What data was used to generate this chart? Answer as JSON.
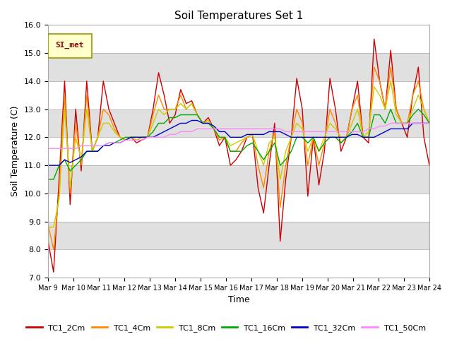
{
  "title": "Soil Temperatures Set 1",
  "xlabel": "Time",
  "ylabel": "Soil Temperature (C)",
  "ylim": [
    7.0,
    16.0
  ],
  "yticks": [
    7.0,
    8.0,
    9.0,
    10.0,
    11.0,
    12.0,
    13.0,
    14.0,
    15.0,
    16.0
  ],
  "x_labels": [
    "Mar 9",
    "Mar 10",
    "Mar 11",
    "Mar 12",
    "Mar 13",
    "Mar 14",
    "Mar 15",
    "Mar 16",
    "Mar 17",
    "Mar 18",
    "Mar 19",
    "Mar 20",
    "Mar 21",
    "Mar 22",
    "Mar 23",
    "Mar 24"
  ],
  "series_colors": {
    "TC1_2Cm": "#cc0000",
    "TC1_4Cm": "#ff8800",
    "TC1_8Cm": "#cccc00",
    "TC1_16Cm": "#00aa00",
    "TC1_32Cm": "#0000cc",
    "TC1_50Cm": "#ff88ff"
  },
  "legend_label": "SI_met",
  "background_color": "#ffffff",
  "plot_bg_alt1": "#e8e8e8",
  "plot_bg_alt2": "#ffffff",
  "TC1_2Cm": [
    8.3,
    7.2,
    10.5,
    14.0,
    9.6,
    13.0,
    10.8,
    14.0,
    11.5,
    12.0,
    14.0,
    13.0,
    12.5,
    12.0,
    11.9,
    12.0,
    11.8,
    11.9,
    12.0,
    13.0,
    14.3,
    13.5,
    12.5,
    12.8,
    13.7,
    13.2,
    13.3,
    12.8,
    12.5,
    12.7,
    12.3,
    11.7,
    12.0,
    11.0,
    11.2,
    11.5,
    12.0,
    12.1,
    10.2,
    9.3,
    11.0,
    12.5,
    8.3,
    10.5,
    12.0,
    14.1,
    13.0,
    9.9,
    12.0,
    10.3,
    11.5,
    14.1,
    13.0,
    11.5,
    12.0,
    13.0,
    14.0,
    12.0,
    11.8,
    15.5,
    14.0,
    13.0,
    15.1,
    13.0,
    12.5,
    12.0,
    13.5,
    14.5,
    12.0,
    11.0
  ],
  "TC1_4Cm": [
    8.9,
    8.0,
    10.0,
    13.5,
    10.0,
    12.5,
    11.0,
    13.5,
    11.5,
    12.0,
    13.0,
    12.8,
    12.3,
    12.0,
    11.9,
    12.0,
    11.9,
    12.0,
    12.0,
    12.8,
    13.5,
    13.0,
    13.0,
    13.0,
    13.5,
    13.0,
    13.2,
    12.8,
    12.5,
    12.6,
    12.3,
    11.9,
    12.0,
    11.5,
    11.5,
    11.8,
    12.0,
    12.1,
    11.0,
    10.2,
    11.5,
    12.2,
    9.5,
    11.0,
    12.0,
    13.0,
    12.5,
    11.0,
    12.0,
    11.0,
    11.8,
    13.0,
    12.5,
    11.8,
    12.0,
    13.0,
    13.5,
    12.0,
    12.0,
    14.5,
    14.0,
    13.0,
    14.5,
    13.0,
    12.5,
    12.5,
    13.5,
    14.0,
    13.0,
    12.5
  ],
  "TC1_8Cm": [
    8.8,
    8.8,
    9.8,
    13.0,
    10.2,
    12.0,
    11.2,
    13.0,
    11.5,
    12.0,
    12.5,
    12.5,
    12.2,
    12.0,
    11.9,
    12.0,
    11.9,
    12.0,
    12.0,
    12.5,
    13.0,
    12.8,
    13.0,
    13.0,
    13.2,
    13.0,
    13.2,
    12.8,
    12.5,
    12.6,
    12.3,
    12.0,
    12.0,
    11.7,
    11.8,
    11.9,
    12.0,
    12.1,
    11.5,
    11.0,
    11.8,
    12.0,
    10.5,
    11.5,
    12.0,
    12.5,
    12.3,
    11.5,
    12.0,
    11.5,
    12.0,
    12.5,
    12.3,
    12.0,
    12.0,
    12.5,
    13.0,
    12.0,
    12.2,
    13.8,
    13.5,
    13.0,
    14.0,
    12.8,
    12.5,
    12.5,
    13.0,
    13.5,
    13.0,
    12.5
  ],
  "TC1_16Cm": [
    10.5,
    10.5,
    11.0,
    11.2,
    10.8,
    11.0,
    11.2,
    11.5,
    11.5,
    11.5,
    11.7,
    11.8,
    11.8,
    11.9,
    12.0,
    12.0,
    12.0,
    12.0,
    12.0,
    12.2,
    12.5,
    12.5,
    12.7,
    12.7,
    12.8,
    12.8,
    12.8,
    12.8,
    12.5,
    12.5,
    12.3,
    12.0,
    12.0,
    11.5,
    11.5,
    11.5,
    11.7,
    11.8,
    11.5,
    11.2,
    11.5,
    11.8,
    11.0,
    11.2,
    11.5,
    12.0,
    12.0,
    11.8,
    12.0,
    11.5,
    11.8,
    12.0,
    12.0,
    11.8,
    12.0,
    12.2,
    12.5,
    12.0,
    12.0,
    12.8,
    12.8,
    12.5,
    13.0,
    12.5,
    12.5,
    12.5,
    12.8,
    13.0,
    12.8,
    12.5
  ],
  "TC1_32Cm": [
    11.0,
    11.0,
    11.0,
    11.2,
    11.1,
    11.2,
    11.3,
    11.5,
    11.5,
    11.5,
    11.7,
    11.7,
    11.8,
    11.8,
    11.9,
    12.0,
    12.0,
    12.0,
    12.0,
    12.0,
    12.1,
    12.2,
    12.3,
    12.4,
    12.5,
    12.5,
    12.6,
    12.6,
    12.5,
    12.5,
    12.4,
    12.2,
    12.2,
    12.0,
    12.0,
    12.0,
    12.1,
    12.1,
    12.1,
    12.1,
    12.2,
    12.2,
    12.2,
    12.1,
    12.0,
    12.0,
    12.0,
    12.0,
    12.0,
    12.0,
    12.0,
    12.0,
    12.0,
    12.0,
    12.0,
    12.1,
    12.1,
    12.0,
    12.0,
    12.0,
    12.1,
    12.2,
    12.3,
    12.3,
    12.3,
    12.3,
    12.5,
    12.5,
    12.5,
    12.5
  ],
  "TC1_50Cm": [
    11.6,
    11.6,
    11.6,
    11.6,
    11.6,
    11.6,
    11.7,
    11.7,
    11.7,
    11.7,
    11.7,
    11.8,
    11.8,
    11.8,
    11.9,
    11.9,
    11.9,
    11.9,
    12.0,
    12.0,
    12.0,
    12.0,
    12.1,
    12.1,
    12.2,
    12.2,
    12.2,
    12.3,
    12.3,
    12.3,
    12.3,
    12.3,
    12.3,
    12.3,
    12.3,
    12.3,
    12.3,
    12.3,
    12.3,
    12.3,
    12.3,
    12.3,
    12.3,
    12.2,
    12.2,
    12.2,
    12.2,
    12.2,
    12.2,
    12.2,
    12.2,
    12.2,
    12.2,
    12.2,
    12.2,
    12.2,
    12.2,
    12.2,
    12.3,
    12.3,
    12.4,
    12.4,
    12.5,
    12.5,
    12.5,
    12.5,
    12.5,
    12.5,
    12.5,
    12.5
  ]
}
